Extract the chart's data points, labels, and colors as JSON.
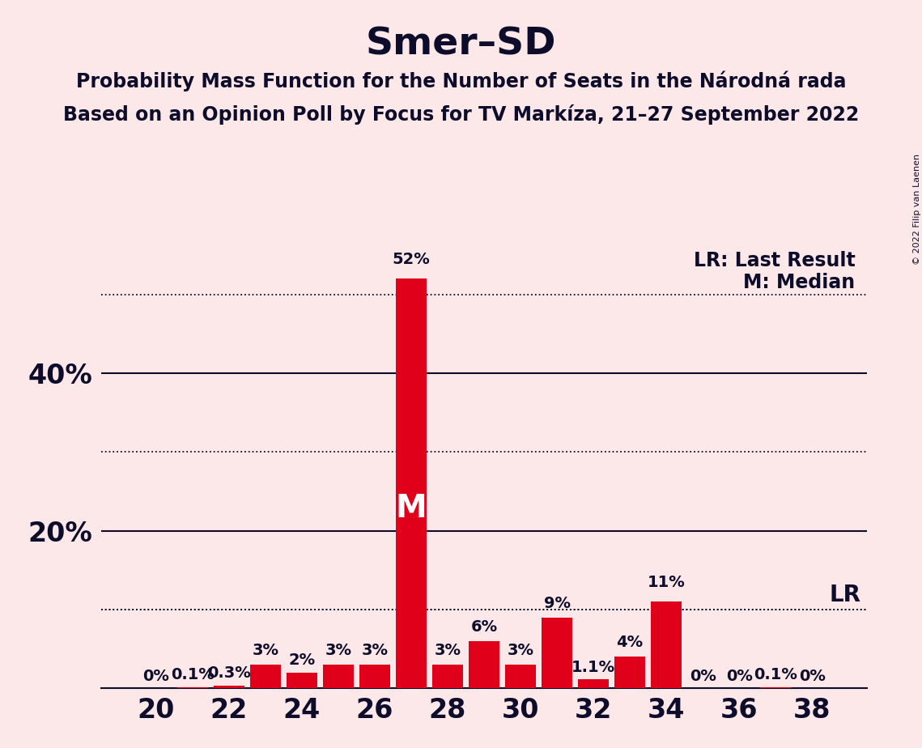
{
  "title": "Smer–SD",
  "subtitle1": "Probability Mass Function for the Number of Seats in the Národná rada",
  "subtitle2": "Based on an Opinion Poll by Focus for TV Markíza, 21–27 September 2022",
  "copyright": "© 2022 Filip van Laenen",
  "seats": [
    20,
    21,
    22,
    23,
    24,
    25,
    26,
    27,
    28,
    29,
    30,
    31,
    32,
    33,
    34,
    35,
    36,
    37,
    38
  ],
  "values": [
    0.0,
    0.1,
    0.3,
    3.0,
    2.0,
    3.0,
    3.0,
    52.0,
    3.0,
    6.0,
    3.0,
    9.0,
    1.1,
    4.0,
    11.0,
    0.0,
    0.0,
    0.1,
    0.0
  ],
  "labels": [
    "0%",
    "0.1%",
    "0.3%",
    "3%",
    "2%",
    "3%",
    "3%",
    "52%",
    "3%",
    "6%",
    "3%",
    "9%",
    "1.1%",
    "4%",
    "11%",
    "0%",
    "0%",
    "0.1%",
    "0%"
  ],
  "bar_color": "#e0001a",
  "background_color": "#fce8e8",
  "median_seat": 27,
  "lr_line_y": 10.0,
  "ylim": [
    0,
    57
  ],
  "ytick_labeled": [
    20,
    40
  ],
  "ytick_labeled_labels": [
    "20%",
    "40%"
  ],
  "ytick_dotted": [
    10,
    30,
    50
  ],
  "xticks": [
    20,
    22,
    24,
    26,
    28,
    30,
    32,
    34,
    36,
    38
  ],
  "title_fontsize": 34,
  "subtitle_fontsize": 17,
  "axis_fontsize": 24,
  "bar_label_fontsize": 14,
  "median_label_fontsize": 28,
  "lr_label_fontsize": 20,
  "legend_fontsize": 17,
  "copyright_fontsize": 8
}
